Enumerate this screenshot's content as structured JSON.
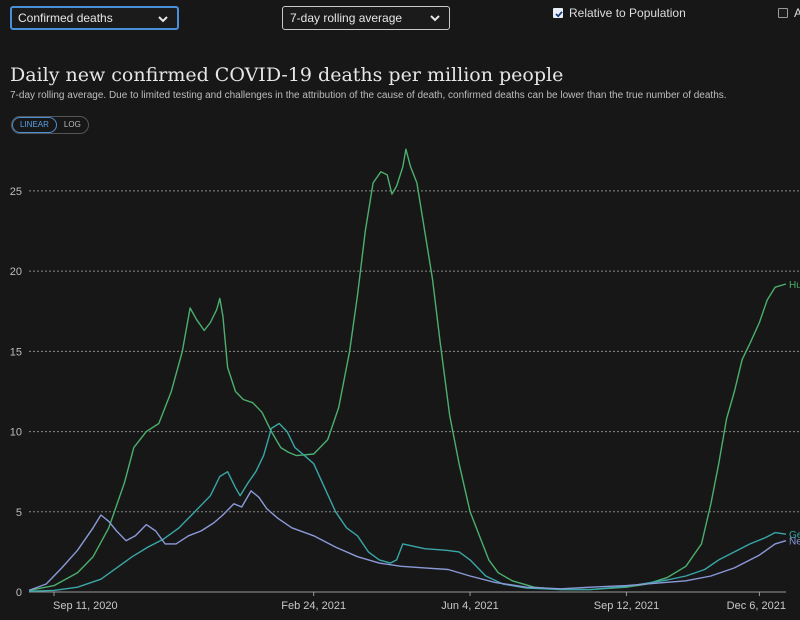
{
  "controls": {
    "metric_select": "Confirmed deaths",
    "interval_select": "7-day rolling average",
    "relative_label": "Relative to Population",
    "relative_checked": true,
    "align_label": "A",
    "align_checked": false
  },
  "scale_toggle": {
    "linear": "LINEAR",
    "log": "LOG",
    "active": "linear"
  },
  "chart_data": {
    "type": "line",
    "title": "Daily new confirmed COVID-19 deaths per million people",
    "subtitle": "7-day rolling average. Due to limited testing and challenges in the attribution of the cause of death, confirmed deaths can be lower than the true number of deaths.",
    "x_range": [
      "2020-08-26",
      "2021-12-23"
    ],
    "ylim": [
      0,
      27.8
    ],
    "yticks": [
      0,
      5,
      10,
      15,
      20,
      25
    ],
    "xticks": [
      {
        "date": "2020-09-11",
        "label": "Sep 11, 2020"
      },
      {
        "date": "2021-02-24",
        "label": "Feb 24, 2021"
      },
      {
        "date": "2021-06-04",
        "label": "Jun 4, 2021"
      },
      {
        "date": "2021-09-12",
        "label": "Sep 12, 2021"
      },
      {
        "date": "2021-12-06",
        "label": "Dec 6, 2021"
      }
    ],
    "grid": "horizontal-dashed",
    "series": [
      {
        "name": "Hu",
        "color": "#4caf6e",
        "points": [
          [
            "2020-08-26",
            0.1
          ],
          [
            "2020-09-11",
            0.4
          ],
          [
            "2020-09-26",
            1.2
          ],
          [
            "2020-10-06",
            2.2
          ],
          [
            "2020-10-16",
            4.0
          ],
          [
            "2020-10-26",
            6.8
          ],
          [
            "2020-11-01",
            9.0
          ],
          [
            "2020-11-09",
            10.0
          ],
          [
            "2020-11-17",
            10.5
          ],
          [
            "2020-11-25",
            12.5
          ],
          [
            "2020-12-02",
            15.0
          ],
          [
            "2020-12-07",
            17.7
          ],
          [
            "2020-12-11",
            17.0
          ],
          [
            "2020-12-16",
            16.3
          ],
          [
            "2020-12-20",
            16.8
          ],
          [
            "2020-12-24",
            17.6
          ],
          [
            "2020-12-26",
            18.3
          ],
          [
            "2020-12-28",
            17.2
          ],
          [
            "2020-12-31",
            14.0
          ],
          [
            "2021-01-05",
            12.5
          ],
          [
            "2021-01-10",
            12.0
          ],
          [
            "2021-01-16",
            11.8
          ],
          [
            "2021-01-22",
            11.2
          ],
          [
            "2021-01-28",
            10.0
          ],
          [
            "2021-02-03",
            9.0
          ],
          [
            "2021-02-08",
            8.7
          ],
          [
            "2021-02-13",
            8.5
          ],
          [
            "2021-02-24",
            8.6
          ],
          [
            "2021-03-05",
            9.5
          ],
          [
            "2021-03-12",
            11.5
          ],
          [
            "2021-03-19",
            15.0
          ],
          [
            "2021-03-24",
            18.5
          ],
          [
            "2021-03-29",
            22.5
          ],
          [
            "2021-04-03",
            25.5
          ],
          [
            "2021-04-08",
            26.2
          ],
          [
            "2021-04-12",
            26.0
          ],
          [
            "2021-04-15",
            24.8
          ],
          [
            "2021-04-18",
            25.3
          ],
          [
            "2021-04-22",
            26.5
          ],
          [
            "2021-04-24",
            27.6
          ],
          [
            "2021-04-27",
            26.5
          ],
          [
            "2021-05-01",
            25.5
          ],
          [
            "2021-05-06",
            22.5
          ],
          [
            "2021-05-11",
            19.5
          ],
          [
            "2021-05-16",
            15.5
          ],
          [
            "2021-05-22",
            11.0
          ],
          [
            "2021-05-28",
            8.0
          ],
          [
            "2021-06-04",
            5.0
          ],
          [
            "2021-06-10",
            3.5
          ],
          [
            "2021-06-16",
            2.0
          ],
          [
            "2021-06-22",
            1.2
          ],
          [
            "2021-07-01",
            0.7
          ],
          [
            "2021-07-15",
            0.3
          ],
          [
            "2021-08-01",
            0.15
          ],
          [
            "2021-08-20",
            0.15
          ],
          [
            "2021-09-12",
            0.3
          ],
          [
            "2021-09-25",
            0.5
          ],
          [
            "2021-10-08",
            0.9
          ],
          [
            "2021-10-20",
            1.6
          ],
          [
            "2021-10-30",
            3.0
          ],
          [
            "2021-11-05",
            5.5
          ],
          [
            "2021-11-10",
            8.0
          ],
          [
            "2021-11-15",
            10.8
          ],
          [
            "2021-11-20",
            12.5
          ],
          [
            "2021-11-25",
            14.5
          ],
          [
            "2021-11-30",
            15.5
          ],
          [
            "2021-12-06",
            16.8
          ],
          [
            "2021-12-11",
            18.2
          ],
          [
            "2021-12-16",
            19.0
          ],
          [
            "2021-12-23",
            19.2
          ]
        ]
      },
      {
        "name": "Ge",
        "color": "#3aa6a6",
        "points": [
          [
            "2020-08-26",
            0.05
          ],
          [
            "2020-09-11",
            0.1
          ],
          [
            "2020-09-26",
            0.3
          ],
          [
            "2020-10-11",
            0.8
          ],
          [
            "2020-10-21",
            1.5
          ],
          [
            "2020-10-31",
            2.2
          ],
          [
            "2020-11-10",
            2.8
          ],
          [
            "2020-11-20",
            3.3
          ],
          [
            "2020-11-30",
            4.0
          ],
          [
            "2020-12-10",
            5.0
          ],
          [
            "2020-12-20",
            6.0
          ],
          [
            "2020-12-26",
            7.2
          ],
          [
            "2020-12-31",
            7.5
          ],
          [
            "2021-01-05",
            6.5
          ],
          [
            "2021-01-08",
            6.0
          ],
          [
            "2021-01-13",
            6.8
          ],
          [
            "2021-01-18",
            7.5
          ],
          [
            "2021-01-23",
            8.5
          ],
          [
            "2021-01-28",
            10.2
          ],
          [
            "2021-02-02",
            10.5
          ],
          [
            "2021-02-07",
            10.0
          ],
          [
            "2021-02-12",
            9.0
          ],
          [
            "2021-02-17",
            8.6
          ],
          [
            "2021-02-24",
            8.0
          ],
          [
            "2021-03-03",
            6.5
          ],
          [
            "2021-03-10",
            5.0
          ],
          [
            "2021-03-17",
            4.0
          ],
          [
            "2021-03-24",
            3.5
          ],
          [
            "2021-03-31",
            2.5
          ],
          [
            "2021-04-07",
            2.0
          ],
          [
            "2021-04-14",
            1.8
          ],
          [
            "2021-04-18",
            2.0
          ],
          [
            "2021-04-22",
            3.0
          ],
          [
            "2021-05-06",
            2.7
          ],
          [
            "2021-05-20",
            2.6
          ],
          [
            "2021-05-28",
            2.5
          ],
          [
            "2021-06-04",
            2.0
          ],
          [
            "2021-06-14",
            1.0
          ],
          [
            "2021-06-25",
            0.5
          ],
          [
            "2021-07-10",
            0.25
          ],
          [
            "2021-08-01",
            0.15
          ],
          [
            "2021-08-20",
            0.15
          ],
          [
            "2021-09-12",
            0.35
          ],
          [
            "2021-09-25",
            0.55
          ],
          [
            "2021-10-08",
            0.75
          ],
          [
            "2021-10-20",
            1.0
          ],
          [
            "2021-11-01",
            1.4
          ],
          [
            "2021-11-10",
            2.0
          ],
          [
            "2021-11-20",
            2.5
          ],
          [
            "2021-11-30",
            3.0
          ],
          [
            "2021-12-10",
            3.4
          ],
          [
            "2021-12-16",
            3.7
          ],
          [
            "2021-12-23",
            3.6
          ]
        ]
      },
      {
        "name": "Ne",
        "color": "#8b9ad8",
        "points": [
          [
            "2020-08-26",
            0.1
          ],
          [
            "2020-09-06",
            0.5
          ],
          [
            "2020-09-16",
            1.5
          ],
          [
            "2020-09-26",
            2.6
          ],
          [
            "2020-10-06",
            4.0
          ],
          [
            "2020-10-11",
            4.8
          ],
          [
            "2020-10-16",
            4.4
          ],
          [
            "2020-10-21",
            3.8
          ],
          [
            "2020-10-27",
            3.2
          ],
          [
            "2020-11-02",
            3.5
          ],
          [
            "2020-11-09",
            4.2
          ],
          [
            "2020-11-15",
            3.8
          ],
          [
            "2020-11-21",
            3.0
          ],
          [
            "2020-11-28",
            3.0
          ],
          [
            "2020-12-06",
            3.5
          ],
          [
            "2020-12-14",
            3.8
          ],
          [
            "2020-12-22",
            4.3
          ],
          [
            "2020-12-28",
            4.8
          ],
          [
            "2021-01-04",
            5.5
          ],
          [
            "2021-01-09",
            5.3
          ],
          [
            "2021-01-12",
            5.8
          ],
          [
            "2021-01-15",
            6.3
          ],
          [
            "2021-01-20",
            5.9
          ],
          [
            "2021-01-25",
            5.2
          ],
          [
            "2021-02-01",
            4.6
          ],
          [
            "2021-02-10",
            4.0
          ],
          [
            "2021-02-24",
            3.5
          ],
          [
            "2021-03-10",
            2.8
          ],
          [
            "2021-03-24",
            2.2
          ],
          [
            "2021-04-07",
            1.8
          ],
          [
            "2021-04-21",
            1.6
          ],
          [
            "2021-05-06",
            1.5
          ],
          [
            "2021-05-21",
            1.4
          ],
          [
            "2021-06-04",
            1.0
          ],
          [
            "2021-06-20",
            0.6
          ],
          [
            "2021-07-10",
            0.3
          ],
          [
            "2021-08-01",
            0.2
          ],
          [
            "2021-08-20",
            0.3
          ],
          [
            "2021-09-12",
            0.4
          ],
          [
            "2021-10-01",
            0.55
          ],
          [
            "2021-10-20",
            0.7
          ],
          [
            "2021-11-05",
            1.0
          ],
          [
            "2021-11-20",
            1.5
          ],
          [
            "2021-12-06",
            2.3
          ],
          [
            "2021-12-16",
            3.0
          ],
          [
            "2021-12-23",
            3.2
          ]
        ]
      }
    ]
  }
}
